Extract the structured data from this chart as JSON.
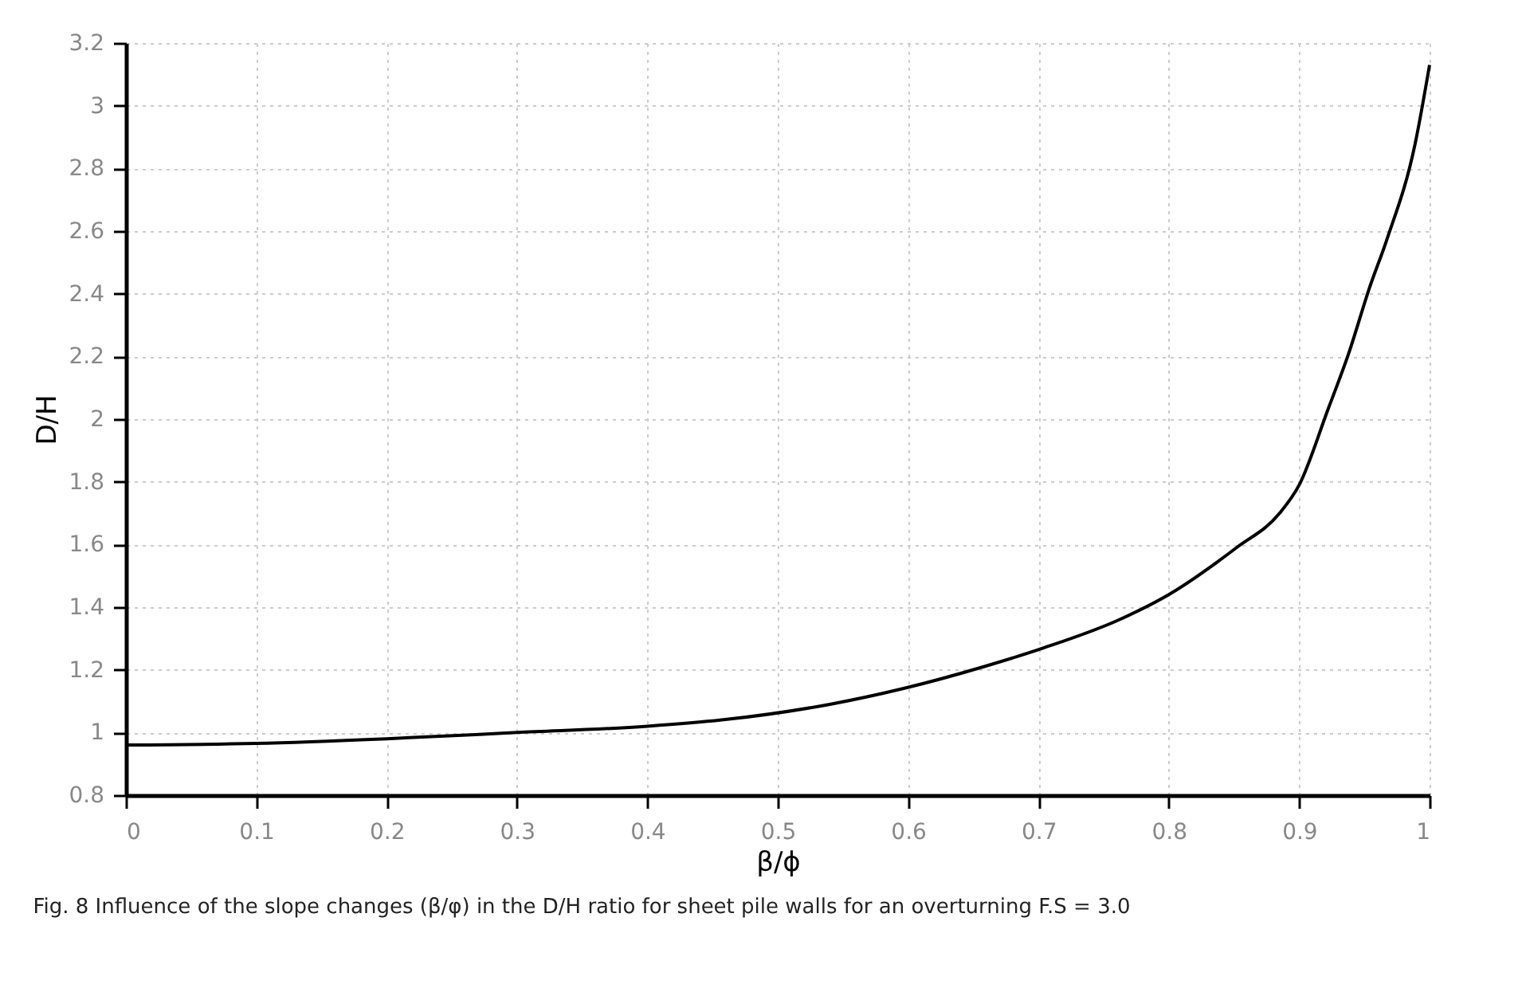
{
  "chart_data": {
    "type": "line",
    "xlabel": "β/ϕ",
    "ylabel": "D/H",
    "x": [
      0,
      0.1,
      0.2,
      0.3,
      0.4,
      0.457,
      0.54,
      0.596,
      0.658,
      0.704,
      0.762,
      0.8,
      0.852,
      0.885,
      0.9,
      0.922,
      0.938,
      0.954,
      0.967,
      0.989,
      1
    ],
    "series": [
      {
        "color": "#000000",
        "values": [
          0.96,
          0.965,
          0.98,
          1.0,
          1.02,
          1.04,
          1.09,
          1.14,
          1.21,
          1.27,
          1.36,
          1.44,
          1.59,
          1.7,
          1.79,
          2.03,
          2.21,
          2.42,
          2.57,
          2.88,
          3.13
        ]
      }
    ],
    "xlim": [
      0,
      1
    ],
    "xticks": [
      0,
      0.1,
      0.2,
      0.3,
      0.4,
      0.5,
      0.6,
      0.7,
      0.8,
      0.9,
      1
    ],
    "ylim": [
      0.8,
      3.2
    ],
    "yticks": [
      0.8,
      1,
      1.2,
      1.4,
      1.6,
      1.8,
      2,
      2.2,
      2.4,
      2.6,
      2.8,
      3,
      3.2
    ],
    "grid": true,
    "legend": false,
    "marker": "none",
    "line_style": "solid",
    "annotations": [
      "Fig. 8  Influence of the slope changes (β/φ) in the D/H ratio for sheet pile walls for an overturning F.S = 3.0"
    ]
  }
}
